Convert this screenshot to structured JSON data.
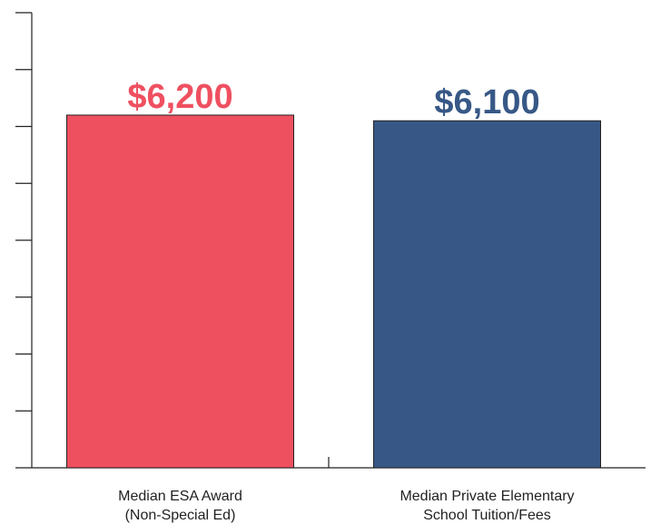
{
  "chart_data": {
    "type": "bar",
    "categories": [
      [
        "Median ESA Award",
        "(Non-Special Ed)"
      ],
      [
        "Median Private Elementary",
        "School Tuition/Fees"
      ]
    ],
    "values": [
      6200,
      6100
    ],
    "value_labels": [
      "$6,200",
      "$6,100"
    ],
    "colors": [
      "#ef5060",
      "#375886"
    ],
    "ylim": [
      0,
      8000
    ],
    "y_tick_step": 1000,
    "grid": false,
    "legend": "none",
    "title": "",
    "xlabel": "",
    "ylabel": ""
  }
}
